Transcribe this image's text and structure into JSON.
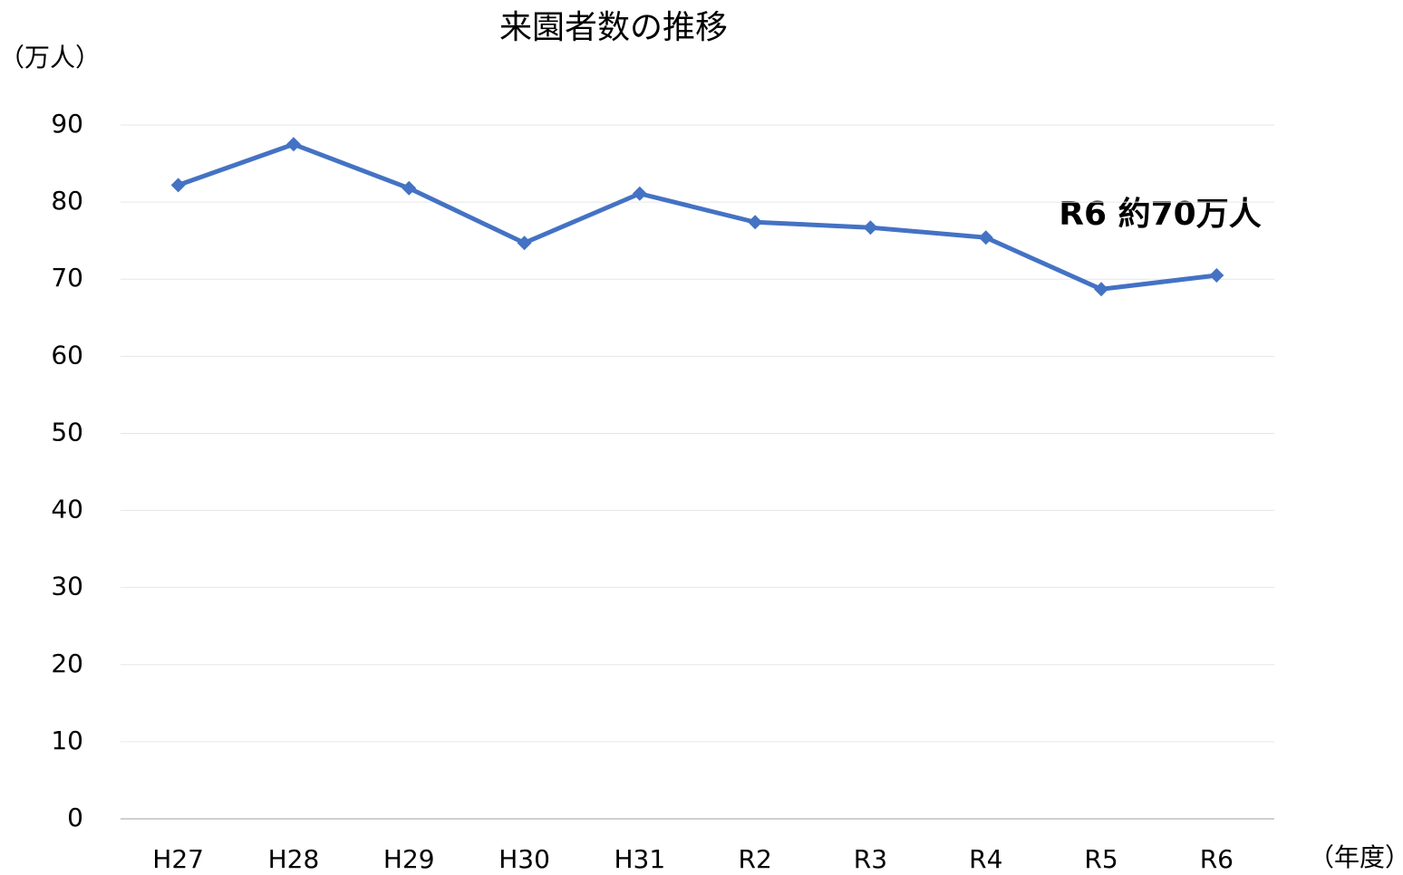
{
  "chart_data": {
    "type": "line",
    "title": "来園者数の推移",
    "y_axis_label": "（万人）",
    "x_axis_label": "（年度）",
    "annotation": "R6 約70万人",
    "categories": [
      "H27",
      "H28",
      "H29",
      "H30",
      "H31",
      "R2",
      "R3",
      "R4",
      "R5",
      "R6"
    ],
    "series": [
      {
        "name": "来園者数",
        "color": "#4472c4",
        "values": [
          82.2,
          87.5,
          81.8,
          74.7,
          81.1,
          77.4,
          76.7,
          75.4,
          68.7,
          70.5
        ]
      }
    ],
    "ylim": [
      0,
      90
    ],
    "yticks": [
      0,
      10,
      20,
      30,
      40,
      50,
      60,
      70,
      80,
      90
    ],
    "grid": true
  }
}
